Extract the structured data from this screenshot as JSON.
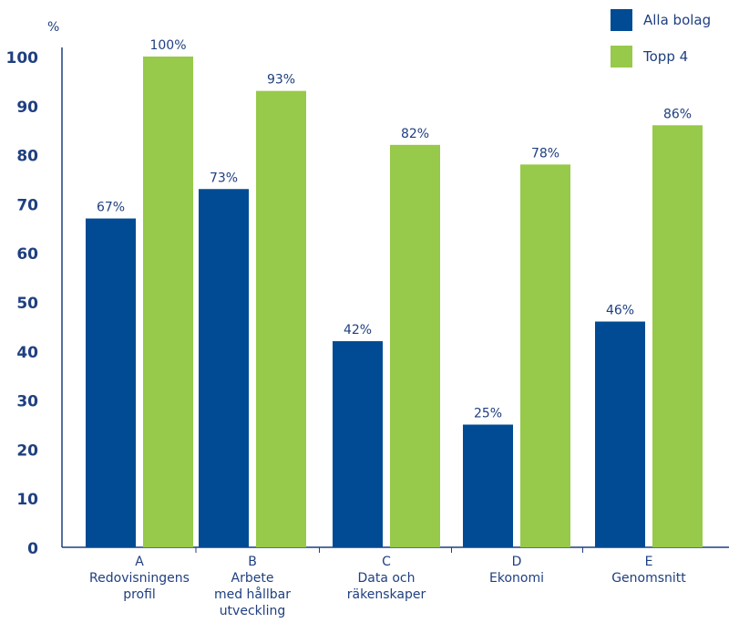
{
  "chart_data": {
    "type": "bar",
    "ylabel": "%",
    "ylim": [
      0,
      100
    ],
    "yticks": [
      "0",
      "10",
      "20",
      "30",
      "40",
      "50",
      "60",
      "70",
      "80",
      "90",
      "100"
    ],
    "categories": [
      [
        "A",
        "Redovisningens",
        "profil"
      ],
      [
        "B",
        "Arbete",
        "med hållbar",
        "utveckling"
      ],
      [
        "C",
        "Data och",
        "räkenskaper"
      ],
      [
        "D",
        "Ekonomi"
      ],
      [
        "E",
        "Genomsnitt"
      ]
    ],
    "series": [
      {
        "name": "Alla bolag",
        "color": "#004b93",
        "values": [
          67,
          73,
          42,
          25,
          46
        ],
        "labels": [
          "67%",
          "73%",
          "42%",
          "25%",
          "46%"
        ]
      },
      {
        "name": "Topp 4",
        "color": "#97c94a",
        "values": [
          100,
          93,
          82,
          78,
          86
        ],
        "labels": [
          "100%",
          "93%",
          "82%",
          "78%",
          "86%"
        ]
      }
    ],
    "legend_position": "top-right",
    "grid": false
  },
  "colors": {
    "text": "#1f3f80",
    "axis": "#1f3f80"
  }
}
